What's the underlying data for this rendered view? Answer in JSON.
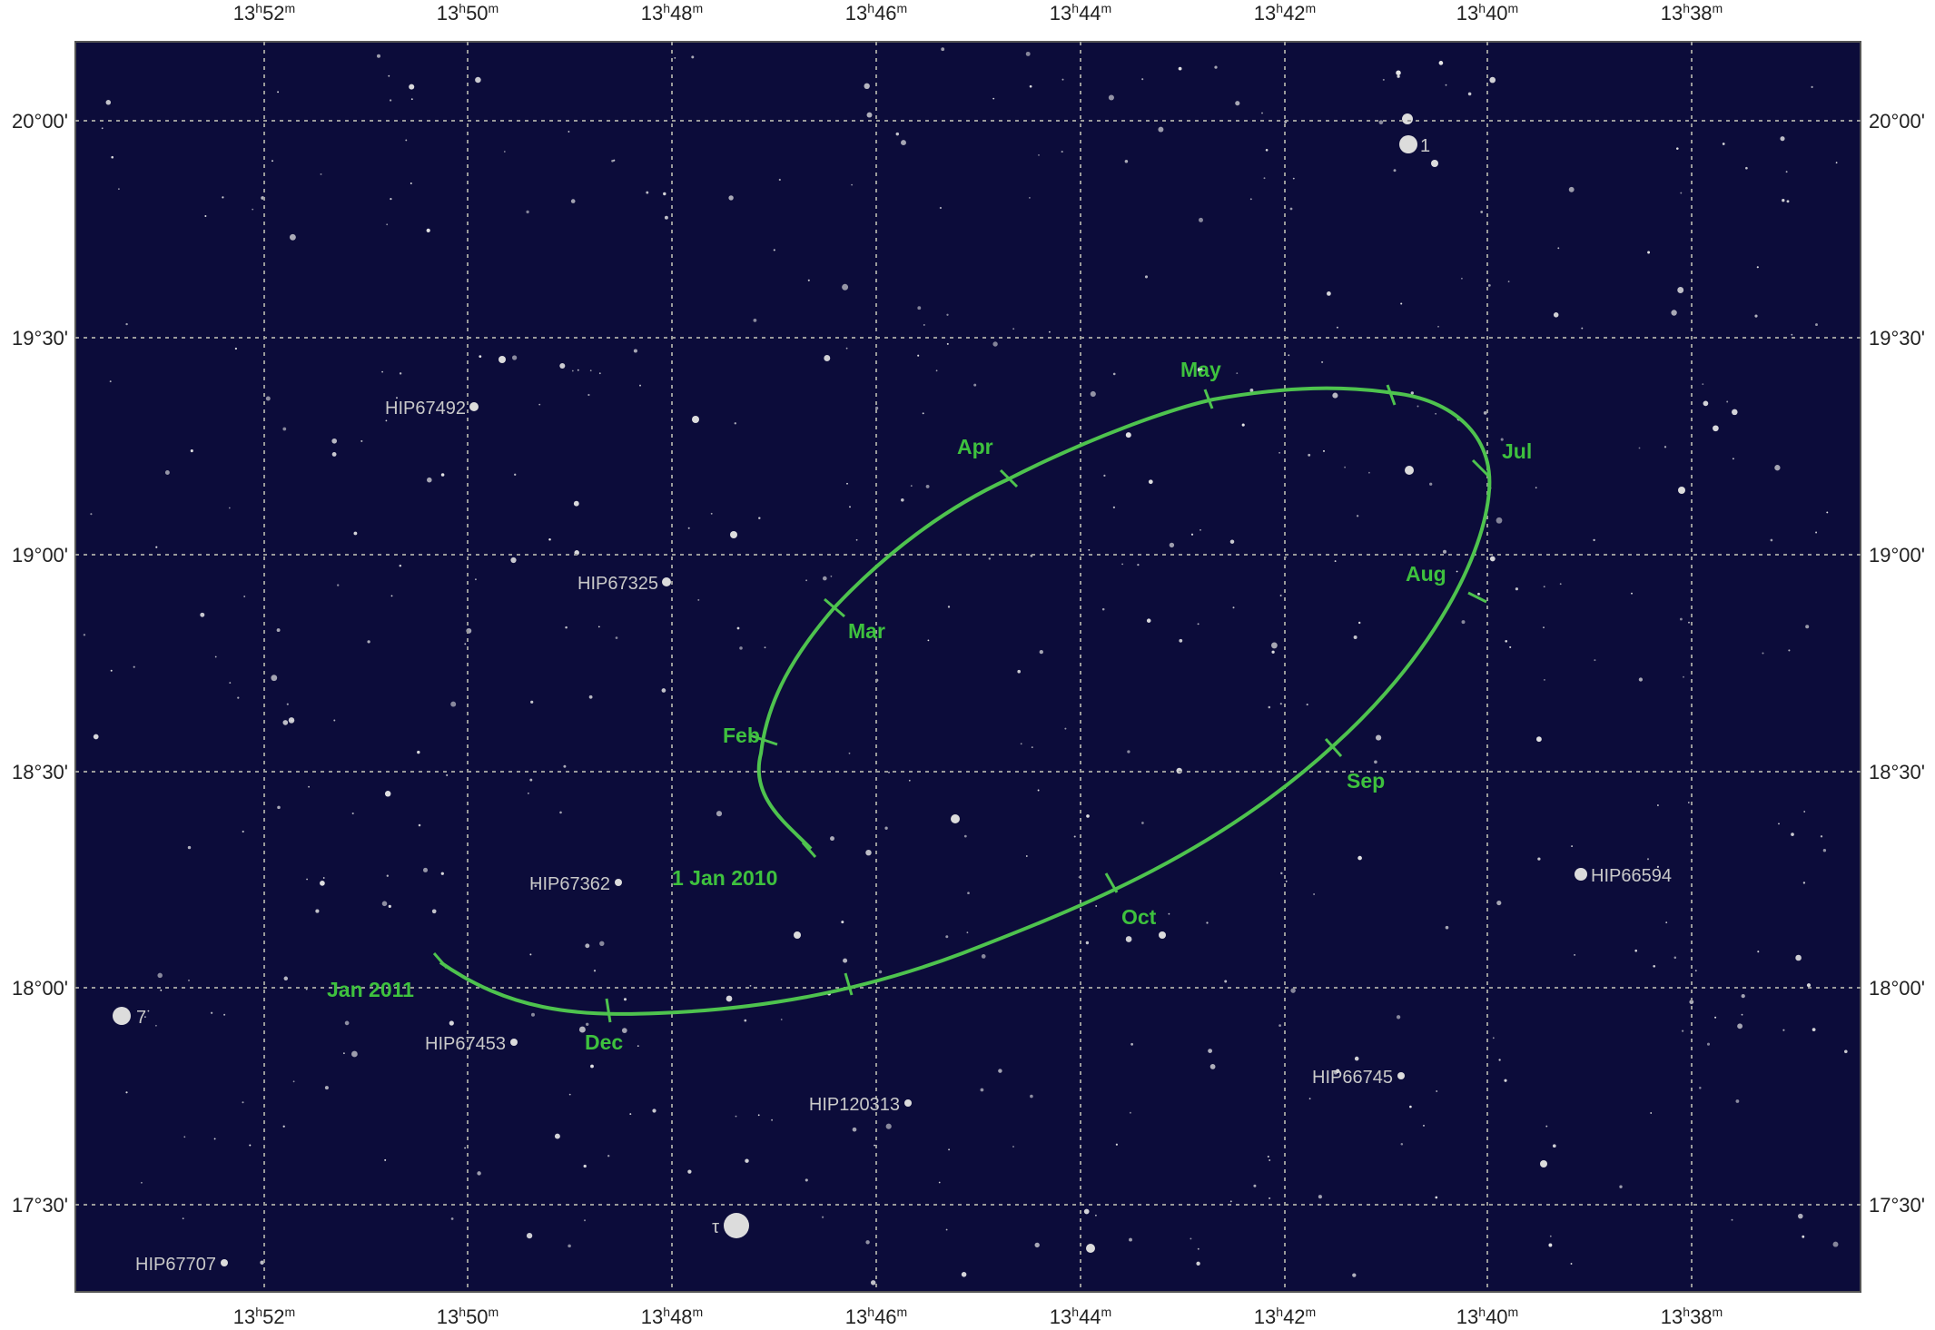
{
  "chart_title": "",
  "colors": {
    "sky": "#0c0c3a",
    "grid": "#9a9a9a",
    "path": "#4ec34e",
    "star": "#dcdcdc",
    "label": "#c9c9c9",
    "axis_text": "#222222"
  },
  "axes": {
    "ra_ticks": [
      {
        "h": "13",
        "m": "52"
      },
      {
        "h": "13",
        "m": "50"
      },
      {
        "h": "13",
        "m": "48"
      },
      {
        "h": "13",
        "m": "46"
      },
      {
        "h": "13",
        "m": "44"
      },
      {
        "h": "13",
        "m": "42"
      },
      {
        "h": "13",
        "m": "40"
      },
      {
        "h": "13",
        "m": "38"
      }
    ],
    "dec_ticks": [
      "20°00'",
      "19°30'",
      "19°00'",
      "18°30'",
      "18°00'",
      "17°30'"
    ]
  },
  "named_stars": [
    {
      "label": "1",
      "symbol": "star-bright"
    },
    {
      "label": "HIP67492",
      "symbol": "star-faint"
    },
    {
      "label": "HIP67325",
      "symbol": "star-faint"
    },
    {
      "label": "HIP67362",
      "symbol": "star-faint"
    },
    {
      "label": "HIP66594",
      "symbol": "star-medium"
    },
    {
      "label": "7",
      "symbol": "star-bright"
    },
    {
      "label": "HIP67453",
      "symbol": "star-faint"
    },
    {
      "label": "HIP66745",
      "symbol": "star-faint"
    },
    {
      "label": "HIP120313",
      "symbol": "star-faint"
    },
    {
      "label": "τ",
      "symbol": "star-bright"
    },
    {
      "label": "HIP67707",
      "symbol": "star-faint"
    }
  ],
  "path_labels": {
    "start": "1 Jan 2010",
    "end": "Jan 2011",
    "months": [
      "Feb",
      "Mar",
      "Apr",
      "May",
      "Jul",
      "Aug",
      "Sep",
      "Oct",
      "Dec"
    ]
  }
}
